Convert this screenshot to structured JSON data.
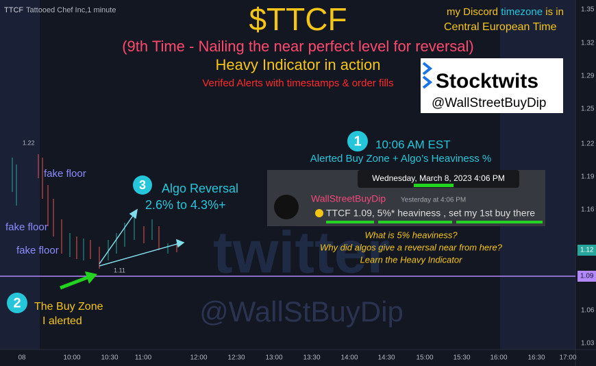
{
  "header": {
    "symbol": "TTCF",
    "name": "Tattooed Chef Inc,1 minute"
  },
  "title": "$TTCF",
  "subtitle": "(9th Time - Nailing the near perfect level for reversal)",
  "line2": "Heavy Indicator in action",
  "line3": "Verifed Alerts with timestamps & order fills",
  "discord": {
    "part1": "my Discord",
    "part2": "timezone",
    "part3": "is in",
    "line2": "Central European Time"
  },
  "stocktwits": {
    "brand": "Stocktwits",
    "handle": "@WallStreetBuyDip"
  },
  "callout1": {
    "number": "1",
    "time": "10:06 AM EST",
    "text": "Alerted Buy Zone + Algo’s Heaviness %"
  },
  "tweet": {
    "tooltip": "Wednesday, March 8, 2023 4:06 PM",
    "user": "WallStreetBuyDip",
    "time": "Yesterday at 4:06 PM",
    "message": "TTCF 1.09, 5%* heaviness , set my 1st buy there"
  },
  "questions": [
    "What is 5% heaviness?",
    "Why did algos give a reversal near from here?",
    "Learn the Heavy Indicator"
  ],
  "callout2": {
    "number": "2",
    "line1": "The Buy Zone",
    "line2": "I alerted"
  },
  "callout3": {
    "number": "3",
    "line1": "Algo Reversal",
    "line2": "2.6% to 4.3%+"
  },
  "floors": [
    "fake floor",
    "fake floor",
    "fake floor"
  ],
  "watermark": {
    "brand": "twitter",
    "handle": "@WallStBuyDip"
  },
  "chart_labels": {
    "high": "1.22",
    "low": "1.11"
  },
  "price_axis": {
    "labels": [
      "1.35",
      "1.32",
      "1.29",
      "1.25",
      "1.22",
      "1.19",
      "1.16",
      "1.06",
      "1.03"
    ],
    "current": "1.12",
    "buy_zone": "1.09"
  },
  "time_axis": [
    "08",
    "10:00",
    "10:30",
    "11:00",
    "12:00",
    "12:30",
    "13:00",
    "13:30",
    "14:00",
    "14:30",
    "15:00",
    "15:30",
    "16:00",
    "16:30",
    "17:00"
  ]
}
